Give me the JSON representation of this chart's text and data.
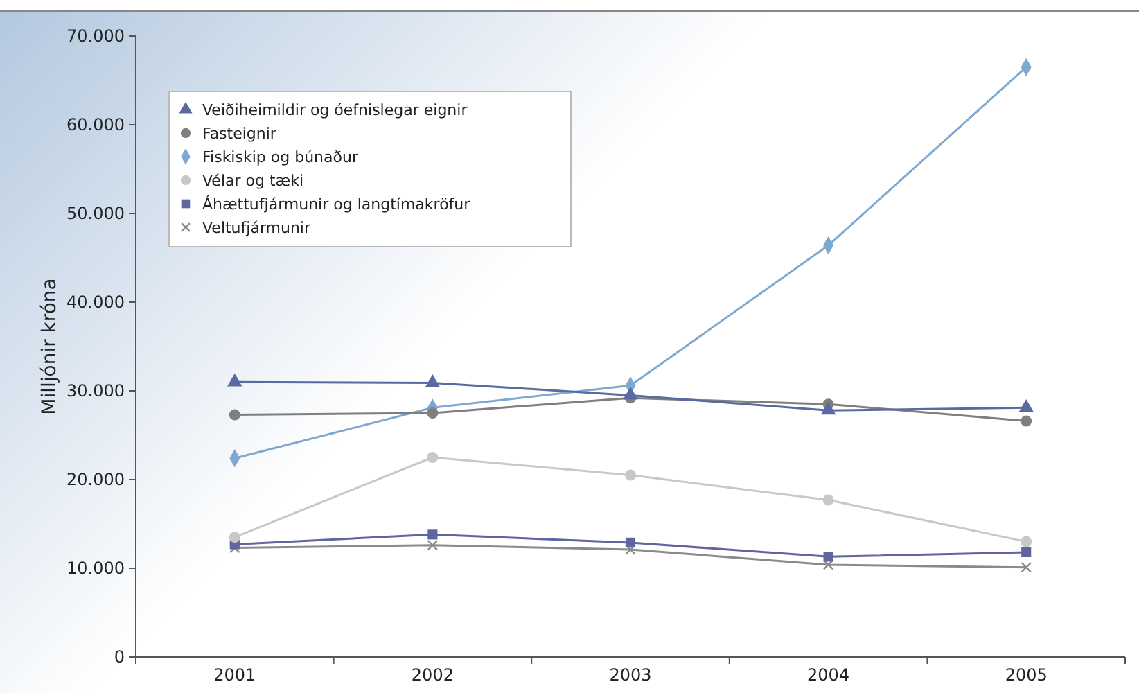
{
  "chart_data": {
    "type": "line",
    "ylabel": "Milljónir króna",
    "categories": [
      "2001",
      "2002",
      "2003",
      "2004",
      "2005"
    ],
    "ylim": [
      0,
      70000
    ],
    "yticks": [
      {
        "value": 0,
        "label": "0"
      },
      {
        "value": 10000,
        "label": "10.000"
      },
      {
        "value": 20000,
        "label": "20.000"
      },
      {
        "value": 30000,
        "label": "30.000"
      },
      {
        "value": 40000,
        "label": "40.000"
      },
      {
        "value": 50000,
        "label": "50.000"
      },
      {
        "value": 60000,
        "label": "60.000"
      },
      {
        "value": 70000,
        "label": "70.000"
      }
    ],
    "legend": "top left",
    "series": [
      {
        "name": "Veiðiheimildir og óefnislegar eignir",
        "color": "#5a6aa0",
        "marker": "triangle",
        "values": [
          31000,
          30900,
          29500,
          27800,
          28100
        ]
      },
      {
        "name": "Fasteignir",
        "color": "#7f7f7f",
        "marker": "circle",
        "values": [
          27300,
          27500,
          29200,
          28500,
          26600
        ]
      },
      {
        "name": "Fiskiskip og búnaður",
        "color": "#7fa8d0",
        "marker": "diamond",
        "values": [
          22400,
          28100,
          30600,
          46400,
          66500
        ]
      },
      {
        "name": "Vélar og tæki",
        "color": "#c8c8c8",
        "marker": "circle",
        "values": [
          13500,
          22500,
          20500,
          17700,
          13000
        ]
      },
      {
        "name": "Áhættufjármunir og langtímakröfur",
        "color": "#6065a0",
        "marker": "square",
        "values": [
          12700,
          13800,
          12900,
          11300,
          11800
        ]
      },
      {
        "name": "Veltufjármunir",
        "color": "#8a8a8a",
        "marker": "cross",
        "values": [
          12300,
          12600,
          12100,
          10400,
          10100
        ]
      }
    ]
  }
}
